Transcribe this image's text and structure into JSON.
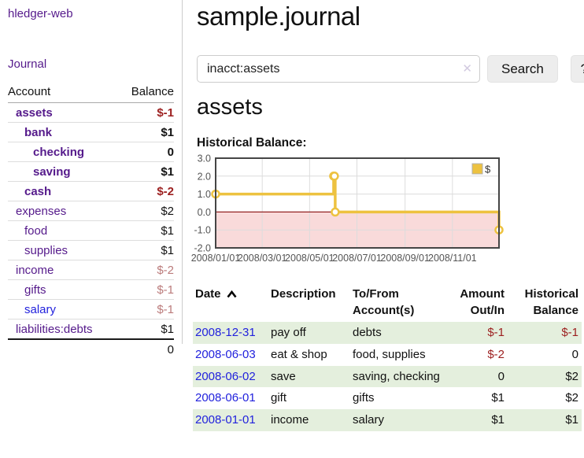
{
  "app": {
    "brand": "hledger-web",
    "nav": {
      "journal": "Journal"
    }
  },
  "colors": {
    "link_purple": "#551a8b",
    "link_blue": "#2222dd",
    "negative_red": "#9c1f1f",
    "negative_faded": "#bb7b7b",
    "row_green": "#e4efdd",
    "chart_gold": "#edc240",
    "chart_negative_region": "#f9dada",
    "chart_zero_line": "#942222"
  },
  "sidebar": {
    "header": {
      "account": "Account",
      "balance": "Balance"
    },
    "accounts": [
      {
        "name": "assets",
        "indent": 1,
        "bold": true,
        "link_color": "purple",
        "balance": "$-1",
        "balance_style": "neg"
      },
      {
        "name": "bank",
        "indent": 2,
        "bold": true,
        "link_color": "purple",
        "balance": "$1",
        "balance_style": "pos"
      },
      {
        "name": "checking",
        "indent": 3,
        "bold": true,
        "link_color": "purple",
        "balance": "0",
        "balance_style": "pos"
      },
      {
        "name": "saving",
        "indent": 3,
        "bold": true,
        "link_color": "purple",
        "balance": "$1",
        "balance_style": "pos"
      },
      {
        "name": "cash",
        "indent": 2,
        "bold": true,
        "link_color": "purple",
        "balance": "$-2",
        "balance_style": "neg"
      },
      {
        "name": "expenses",
        "indent": 1,
        "bold": false,
        "link_color": "purple",
        "balance": "$2",
        "balance_style": "pos"
      },
      {
        "name": "food",
        "indent": 2,
        "bold": false,
        "link_color": "purple",
        "balance": "$1",
        "balance_style": "pos"
      },
      {
        "name": "supplies",
        "indent": 2,
        "bold": false,
        "link_color": "purple",
        "balance": "$1",
        "balance_style": "pos"
      },
      {
        "name": "income",
        "indent": 1,
        "bold": false,
        "link_color": "purple",
        "balance": "$-2",
        "balance_style": "negfade"
      },
      {
        "name": "gifts",
        "indent": 2,
        "bold": false,
        "link_color": "purple",
        "balance": "$-1",
        "balance_style": "negfade"
      },
      {
        "name": "salary",
        "indent": 2,
        "bold": false,
        "link_color": "blue",
        "balance": "$-1",
        "balance_style": "negfade"
      },
      {
        "name": "liabilities:debts",
        "indent": 1,
        "bold": false,
        "link_color": "purple",
        "balance": "$1",
        "balance_style": "pos"
      }
    ],
    "total": "0"
  },
  "main": {
    "title": "sample.journal",
    "search": {
      "value": "inacct:assets",
      "clear_icon": "✕",
      "search_button": "Search",
      "help_button": "?"
    },
    "account_title": "assets",
    "chart_label": "Historical Balance:"
  },
  "chart_data": {
    "type": "line",
    "title": "Historical Balance:",
    "step": true,
    "x_range": [
      "2008-01-01",
      "2008-12-31"
    ],
    "ylim": [
      -2,
      3
    ],
    "yticks": [
      3.0,
      2.0,
      1.0,
      0.0,
      -1.0,
      -2.0
    ],
    "ytick_labels": [
      "3.0",
      "2.0",
      "1.0",
      "0.0",
      "-1.0",
      "-2.0"
    ],
    "xticks": [
      "2008-01-01",
      "2008-03-01",
      "2008-05-01",
      "2008-07-01",
      "2008-09-01",
      "2008-11-01"
    ],
    "xtick_labels": [
      "2008/01/01",
      "2008/03/01",
      "2008/05/01",
      "2008/07/01",
      "2008/09/01",
      "2008/11/01"
    ],
    "grid": true,
    "legend": {
      "position": "top-right",
      "label": "$"
    },
    "series": [
      {
        "name": "$",
        "color": "#edc240",
        "points": [
          [
            "2008-01-01",
            1
          ],
          [
            "2008-06-01",
            2
          ],
          [
            "2008-06-02",
            2
          ],
          [
            "2008-06-03",
            0
          ],
          [
            "2008-12-31",
            -1
          ]
        ]
      }
    ]
  },
  "register": {
    "columns": [
      {
        "lines": [
          "Date"
        ],
        "align": "left",
        "sorted": "asc"
      },
      {
        "lines": [
          "Description"
        ],
        "align": "left"
      },
      {
        "lines": [
          "To/From",
          "Account(s)"
        ],
        "align": "left"
      },
      {
        "lines": [
          "Amount",
          "Out/In"
        ],
        "align": "right"
      },
      {
        "lines": [
          "Historical",
          "Balance"
        ],
        "align": "right"
      }
    ],
    "rows": [
      {
        "date": "2008-12-31",
        "description": "pay off",
        "accounts": "debts",
        "amount": "$-1",
        "amount_neg": true,
        "balance": "$-1",
        "balance_neg": true,
        "shaded": true
      },
      {
        "date": "2008-06-03",
        "description": "eat & shop",
        "accounts": "food, supplies",
        "amount": "$-2",
        "amount_neg": true,
        "balance": "0",
        "balance_neg": false,
        "shaded": false
      },
      {
        "date": "2008-06-02",
        "description": "save",
        "accounts": "saving, checking",
        "amount": "0",
        "amount_neg": false,
        "balance": "$2",
        "balance_neg": false,
        "shaded": true
      },
      {
        "date": "2008-06-01",
        "description": "gift",
        "accounts": "gifts",
        "amount": "$1",
        "amount_neg": false,
        "balance": "$2",
        "balance_neg": false,
        "shaded": false
      },
      {
        "date": "2008-01-01",
        "description": "income",
        "accounts": "salary",
        "amount": "$1",
        "amount_neg": false,
        "balance": "$1",
        "balance_neg": false,
        "shaded": true
      }
    ]
  }
}
